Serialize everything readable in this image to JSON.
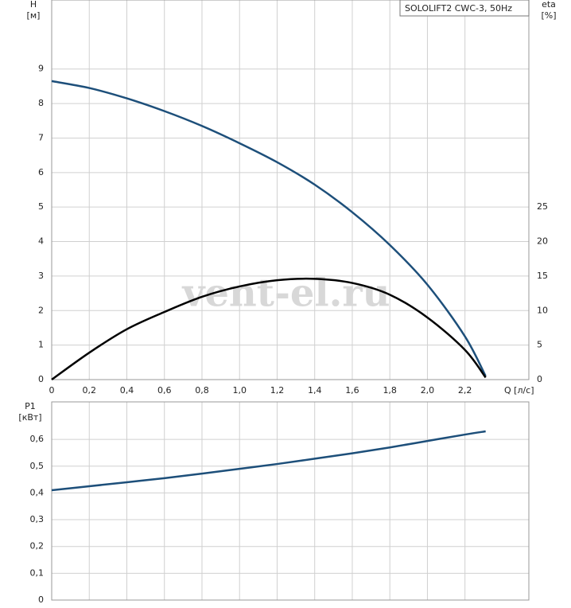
{
  "chart_data": [
    {
      "type": "line",
      "legend_title": "SOLOLIFT2 CWC-3, 50Hz",
      "watermark": "vent-el.ru",
      "ylabel": "H",
      "yunit": "[м]",
      "y2label": "eta",
      "y2unit": "[%]",
      "xlabel": "Q [л/с]",
      "x": [
        0,
        0.2,
        0.4,
        0.6,
        0.8,
        1.0,
        1.2,
        1.4,
        1.6,
        1.8,
        2.0,
        2.2,
        2.31
      ],
      "xlim": [
        0,
        2.54
      ],
      "xticks": [
        0,
        {
          "value": 0.2,
          "label": "0,2"
        },
        {
          "value": 0.4,
          "label": "0,4"
        },
        {
          "value": 0.6,
          "label": "0,6"
        },
        {
          "value": 0.8,
          "label": "0,8"
        },
        {
          "value": 1.0,
          "label": "1,0"
        },
        {
          "value": 1.2,
          "label": "1,2"
        },
        {
          "value": 1.4,
          "label": "1,4"
        },
        {
          "value": 1.6,
          "label": "1,6"
        },
        {
          "value": 1.8,
          "label": "1,8"
        },
        {
          "value": 2.0,
          "label": "2,0"
        },
        {
          "value": 2.2,
          "label": "2,2"
        }
      ],
      "ylim": [
        0,
        11
      ],
      "yticks": [
        0,
        1,
        2,
        3,
        4,
        5,
        6,
        7,
        8,
        9
      ],
      "y2lim": [
        0,
        55
      ],
      "y2ticks": [
        0,
        5,
        10,
        15,
        20,
        25
      ],
      "grid": true,
      "series": [
        {
          "color": "#1d4f7a",
          "axis": "y",
          "values": [
            8.65,
            8.45,
            8.15,
            7.78,
            7.35,
            6.85,
            6.3,
            5.65,
            4.85,
            3.9,
            2.75,
            1.25,
            0.1
          ]
        },
        {
          "color": "#000000",
          "axis": "y2",
          "values": [
            0,
            3.9,
            7.3,
            9.8,
            12,
            13.5,
            14.4,
            14.6,
            14,
            12.3,
            9,
            4.3,
            0.3
          ]
        }
      ]
    },
    {
      "type": "line",
      "ylabel": "P1",
      "yunit": "[кВт]",
      "x": [
        0,
        0.2,
        0.4,
        0.6,
        0.8,
        1.0,
        1.2,
        1.4,
        1.6,
        1.8,
        2.0,
        2.2,
        2.31
      ],
      "xlim": [
        0,
        2.54
      ],
      "ylim": [
        0,
        0.74
      ],
      "yticks": [
        0,
        {
          "value": 0.1,
          "label": "0,1"
        },
        {
          "value": 0.2,
          "label": "0,2"
        },
        {
          "value": 0.3,
          "label": "0,3"
        },
        {
          "value": 0.4,
          "label": "0,4"
        },
        {
          "value": 0.5,
          "label": "0,5"
        },
        {
          "value": 0.6,
          "label": "0,6"
        }
      ],
      "grid": true,
      "series": [
        {
          "color": "#1d4f7a",
          "values": [
            0.41,
            0.425,
            0.44,
            0.455,
            0.472,
            0.49,
            0.508,
            0.528,
            0.548,
            0.57,
            0.594,
            0.618,
            0.63
          ]
        }
      ]
    }
  ]
}
